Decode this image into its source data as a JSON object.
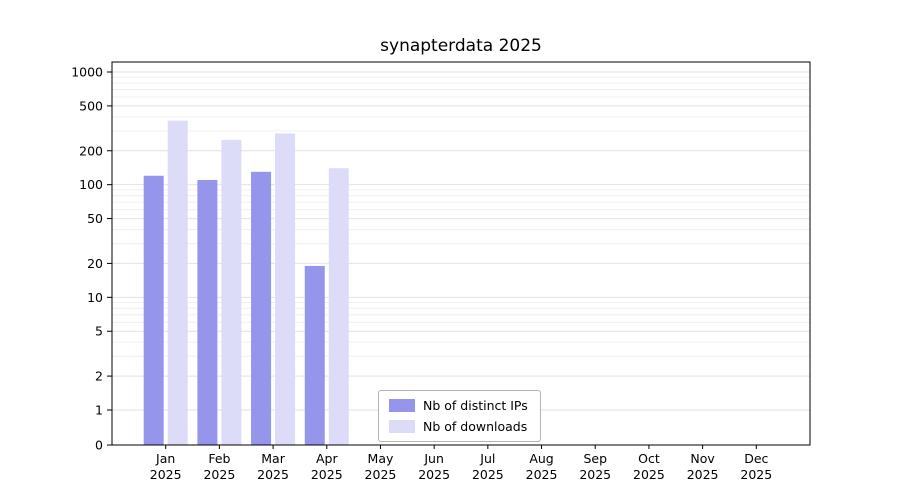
{
  "chart_data": {
    "type": "bar",
    "title": "synapterdata 2025",
    "categories": [
      "Jan",
      "Feb",
      "Mar",
      "Apr",
      "May",
      "Jun",
      "Jul",
      "Aug",
      "Sep",
      "Oct",
      "Nov",
      "Dec"
    ],
    "category_year": "2025",
    "series": [
      {
        "name": "Nb of distinct IPs",
        "color": "#9595ec",
        "values": [
          120,
          110,
          130,
          19,
          0,
          0,
          0,
          0,
          0,
          0,
          0,
          0
        ]
      },
      {
        "name": "Nb of downloads",
        "color": "#dcdcf8",
        "values": [
          370,
          250,
          285,
          140,
          0,
          0,
          0,
          0,
          0,
          0,
          0,
          0
        ]
      }
    ],
    "yticks": [
      0,
      1,
      2,
      5,
      10,
      20,
      50,
      100,
      200,
      500,
      1000
    ],
    "yscale": "symlog",
    "ylim": [
      0,
      1000
    ],
    "grid": true,
    "legend_position": "lower center",
    "colors": {
      "axis": "#000000",
      "grid_major": "#e2e2e2",
      "grid_minor": "#f0f0f0",
      "background": "#ffffff",
      "legend_border": "#b3b3b3",
      "tick_text": "#000000"
    }
  }
}
